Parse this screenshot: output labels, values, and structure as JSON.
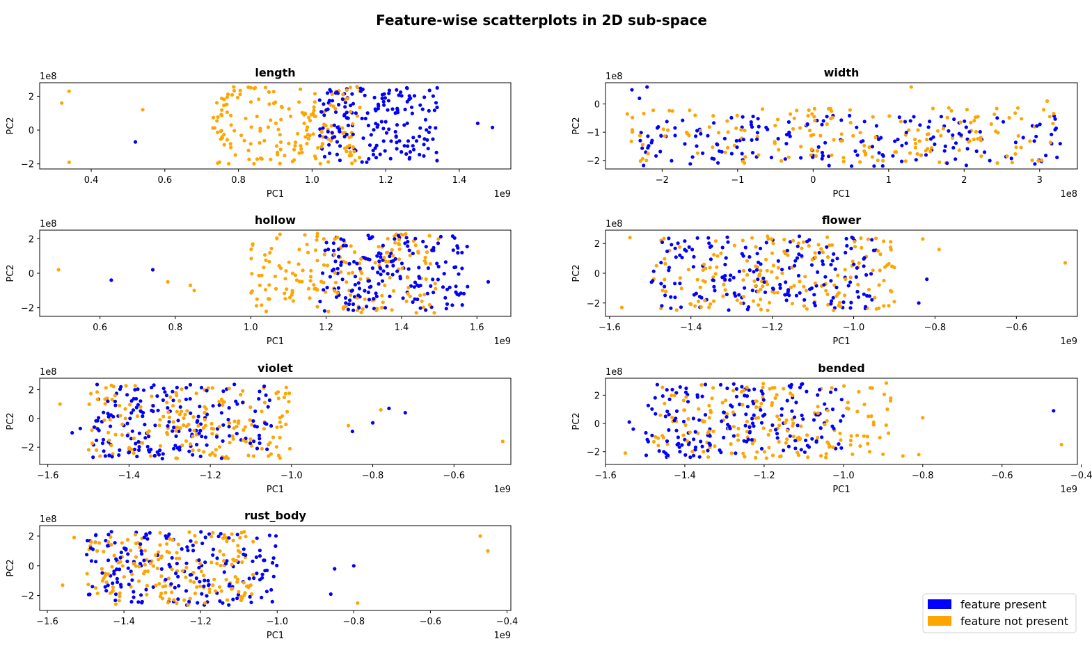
{
  "chart_data": {
    "title": "Feature-wise scatterplots in 2D sub-space",
    "legend": {
      "placement": "bottom-right",
      "entries": [
        {
          "label": "feature present",
          "color": "#0000ff"
        },
        {
          "label": "feature not present",
          "color": "#ffa500"
        }
      ]
    },
    "subplots": [
      {
        "type": "scatter",
        "title": "length",
        "xlabel": "PC1",
        "ylabel": "PC2",
        "x_offset_label": "1e9",
        "y_offset_label": "1e8",
        "xlim": [
          0.26,
          1.54
        ],
        "ylim": [
          -2.3,
          2.8
        ],
        "xticks": [
          0.4,
          0.6,
          0.8,
          1.0,
          1.2,
          1.4
        ],
        "xtick_labels": [
          "0.4",
          "0.6",
          "0.8",
          "1.0",
          "1.2",
          "1.4"
        ],
        "yticks": [
          -2,
          0,
          2
        ],
        "ytick_labels": [
          "−2",
          "0",
          "2"
        ],
        "present_center": [
          1.18,
          0.3
        ],
        "present_spread": [
          0.16,
          2.2
        ],
        "absent_center": [
          0.93,
          0.3
        ],
        "absent_spread": [
          0.2,
          2.3
        ],
        "outliers_present": [
          [
            0.52,
            -0.7
          ],
          [
            1.45,
            0.4
          ],
          [
            1.49,
            0.15
          ]
        ],
        "outliers_absent": [
          [
            0.32,
            1.6
          ],
          [
            0.34,
            2.3
          ],
          [
            0.34,
            -1.9
          ],
          [
            0.54,
            1.2
          ]
        ]
      },
      {
        "type": "scatter",
        "title": "width",
        "xlabel": "PC1",
        "ylabel": "PC2",
        "x_offset_label": "1e8",
        "y_offset_label": "1e8",
        "xlim": [
          -2.75,
          3.5
        ],
        "ylim": [
          -2.3,
          0.75
        ],
        "xticks": [
          -2,
          -1,
          0,
          1,
          2,
          3
        ],
        "xtick_labels": [
          "−2",
          "−1",
          "0",
          "1",
          "2",
          "3"
        ],
        "yticks": [
          -2,
          -1,
          0
        ],
        "ytick_labels": [
          "−2",
          "−1",
          "0"
        ],
        "present_center": [
          0.5,
          -1.3
        ],
        "present_spread": [
          2.8,
          0.9
        ],
        "absent_center": [
          0.3,
          -1.1
        ],
        "absent_spread": [
          2.9,
          1.0
        ],
        "outliers_present": [
          [
            -2.4,
            0.5
          ],
          [
            -2.2,
            0.6
          ],
          [
            -2.3,
            0.2
          ]
        ],
        "outliers_absent": [
          [
            1.3,
            0.6
          ],
          [
            3.1,
            0.1
          ]
        ]
      },
      {
        "type": "scatter",
        "title": "hollow",
        "xlabel": "PC1",
        "ylabel": "PC2",
        "x_offset_label": "1e9",
        "y_offset_label": "1e8",
        "xlim": [
          0.44,
          1.69
        ],
        "ylim": [
          -2.5,
          2.5
        ],
        "xticks": [
          0.6,
          0.8,
          1.0,
          1.2,
          1.4,
          1.6
        ],
        "xtick_labels": [
          "0.6",
          "0.8",
          "1.0",
          "1.2",
          "1.4",
          "1.6"
        ],
        "yticks": [
          -2,
          0,
          2
        ],
        "ytick_labels": [
          "−2",
          "0",
          "2"
        ],
        "present_center": [
          1.38,
          0.0
        ],
        "present_spread": [
          0.2,
          2.2
        ],
        "absent_center": [
          1.25,
          0.0
        ],
        "absent_spread": [
          0.25,
          2.3
        ],
        "outliers_present": [
          [
            0.63,
            -0.4
          ],
          [
            0.74,
            0.2
          ],
          [
            1.63,
            -0.5
          ]
        ],
        "outliers_absent": [
          [
            0.49,
            0.2
          ],
          [
            0.78,
            -0.5
          ],
          [
            0.85,
            -1.0
          ],
          [
            0.84,
            -0.7
          ]
        ]
      },
      {
        "type": "scatter",
        "title": "flower",
        "xlabel": "PC1",
        "ylabel": "PC2",
        "x_offset_label": "1e9",
        "y_offset_label": "1e8",
        "xlim": [
          -1.61,
          -0.45
        ],
        "ylim": [
          -2.9,
          2.9
        ],
        "xticks": [
          -1.6,
          -1.4,
          -1.2,
          -1.0,
          -0.8,
          -0.6
        ],
        "xtick_labels": [
          "−1.6",
          "−1.4",
          "−1.2",
          "−1.0",
          "−0.8",
          "−0.6"
        ],
        "yticks": [
          -2,
          0,
          2
        ],
        "ytick_labels": [
          "−2",
          "0",
          "2"
        ],
        "present_center": [
          -1.22,
          0.0
        ],
        "present_spread": [
          0.28,
          2.5
        ],
        "absent_center": [
          -1.2,
          0.0
        ],
        "absent_spread": [
          0.3,
          2.5
        ],
        "outliers_present": [
          [
            -0.82,
            -0.4
          ],
          [
            -0.84,
            -2.0
          ]
        ],
        "outliers_absent": [
          [
            -0.48,
            0.7
          ],
          [
            -1.57,
            -2.3
          ],
          [
            -1.55,
            2.4
          ],
          [
            -0.79,
            1.6
          ],
          [
            -0.83,
            2.3
          ]
        ]
      },
      {
        "type": "scatter",
        "title": "violet",
        "xlabel": "PC1",
        "ylabel": "PC2",
        "x_offset_label": "1e9",
        "y_offset_label": "1e8",
        "xlim": [
          -1.62,
          -0.46
        ],
        "ylim": [
          -3.2,
          2.8
        ],
        "xticks": [
          -1.6,
          -1.4,
          -1.2,
          -1.0,
          -0.8,
          -0.6
        ],
        "xtick_labels": [
          "−1.6",
          "−1.4",
          "−1.2",
          "−1.0",
          "−0.8",
          "−0.6"
        ],
        "yticks": [
          -2,
          0,
          2
        ],
        "ytick_labels": [
          "−2",
          "0",
          "2"
        ],
        "present_center": [
          -1.27,
          -0.2
        ],
        "present_spread": [
          0.22,
          2.6
        ],
        "absent_center": [
          -1.25,
          -0.2
        ],
        "absent_spread": [
          0.25,
          2.6
        ],
        "outliers_present": [
          [
            -0.72,
            0.4
          ],
          [
            -0.76,
            0.7
          ],
          [
            -0.8,
            -0.3
          ],
          [
            -0.85,
            -0.9
          ],
          [
            -1.54,
            -1.0
          ],
          [
            -1.52,
            -0.7
          ]
        ],
        "outliers_absent": [
          [
            -0.48,
            -1.6
          ],
          [
            -1.57,
            1.0
          ],
          [
            -0.78,
            0.6
          ],
          [
            -0.86,
            -0.5
          ]
        ]
      },
      {
        "type": "scatter",
        "title": "bended",
        "xlabel": "PC1",
        "ylabel": "PC2",
        "x_offset_label": "1e9",
        "y_offset_label": "1e8",
        "xlim": [
          -1.6,
          -0.41
        ],
        "ylim": [
          -2.9,
          3.2
        ],
        "xticks": [
          -1.6,
          -1.4,
          -1.2,
          -1.0,
          -0.8,
          -0.6,
          -0.4
        ],
        "xtick_labels": [
          "−1.6",
          "−1.4",
          "−1.2",
          "−1.0",
          "−0.8",
          "−0.6",
          "−0.4"
        ],
        "yticks": [
          -2,
          0,
          2
        ],
        "ytick_labels": [
          "−2",
          "0",
          "2"
        ],
        "present_center": [
          -1.25,
          0.2
        ],
        "present_spread": [
          0.25,
          2.6
        ],
        "absent_center": [
          -1.18,
          0.2
        ],
        "absent_spread": [
          0.3,
          2.7
        ],
        "outliers_present": [
          [
            -0.47,
            0.9
          ],
          [
            -1.53,
            -0.4
          ],
          [
            -1.54,
            0.1
          ]
        ],
        "outliers_absent": [
          [
            -0.45,
            -1.5
          ],
          [
            -1.55,
            -2.1
          ],
          [
            -0.8,
            0.4
          ],
          [
            -0.81,
            -2.2
          ],
          [
            -0.85,
            -2.3
          ]
        ]
      },
      {
        "type": "scatter",
        "title": "rust_body",
        "xlabel": "PC1",
        "ylabel": "PC2",
        "x_offset_label": "1e9",
        "y_offset_label": "1e8",
        "xlim": [
          -1.62,
          -0.39
        ],
        "ylim": [
          -3.0,
          2.7
        ],
        "xticks": [
          -1.6,
          -1.4,
          -1.2,
          -1.0,
          -0.8,
          -0.6,
          -0.4
        ],
        "xtick_labels": [
          "−1.6",
          "−1.4",
          "−1.2",
          "−1.0",
          "−0.8",
          "−0.6",
          "−0.4"
        ],
        "yticks": [
          -2,
          0,
          2
        ],
        "ytick_labels": [
          "−2",
          "0",
          "2"
        ],
        "present_center": [
          -1.25,
          -0.2
        ],
        "present_spread": [
          0.25,
          2.5
        ],
        "absent_center": [
          -1.28,
          -0.2
        ],
        "absent_spread": [
          0.22,
          2.5
        ],
        "outliers_present": [
          [
            -0.8,
            0.0
          ],
          [
            -0.85,
            -0.2
          ],
          [
            -0.86,
            -1.9
          ]
        ],
        "outliers_absent": [
          [
            -0.47,
            2.0
          ],
          [
            -0.45,
            1.0
          ],
          [
            -0.79,
            -2.5
          ],
          [
            -1.56,
            -1.3
          ],
          [
            -1.53,
            1.9
          ]
        ]
      }
    ]
  }
}
